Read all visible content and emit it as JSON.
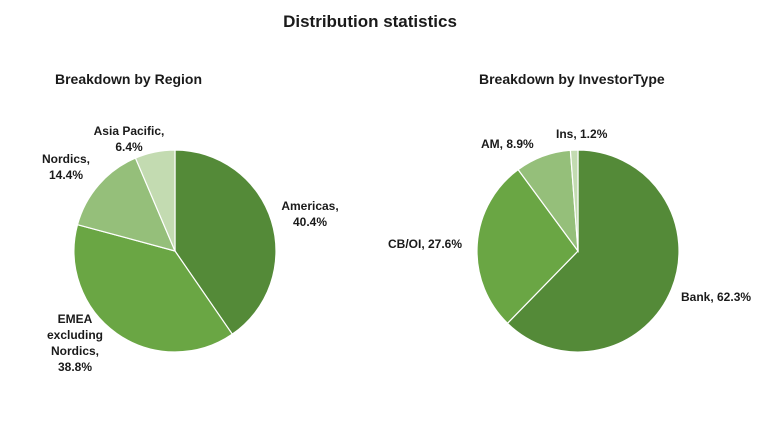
{
  "title": "Distribution statistics",
  "chart_data": [
    {
      "type": "pie",
      "title": "Breakdown by Region",
      "slices": [
        {
          "label": "Americas,",
          "value": 40.4,
          "value_text": "40.4%",
          "color": "#548a38"
        },
        {
          "label": "EMEA excluding Nordics,",
          "value": 38.8,
          "value_text": "38.8%",
          "color": "#6aa644"
        },
        {
          "label": "Nordics,",
          "value": 14.4,
          "value_text": "14.4%",
          "color": "#95bf7a"
        },
        {
          "label": "Asia Pacific,",
          "value": 6.4,
          "value_text": "6.4%",
          "color": "#c3dbb1"
        }
      ]
    },
    {
      "type": "pie",
      "title": "Breakdown by InvestorType",
      "slices": [
        {
          "label": "Bank,",
          "value": 62.3,
          "value_text": "62.3%",
          "color": "#548a38"
        },
        {
          "label": "CB/OI,",
          "value": 27.6,
          "value_text": "27.6%",
          "color": "#6aa644"
        },
        {
          "label": "AM,",
          "value": 8.9,
          "value_text": "8.9%",
          "color": "#95bf7a"
        },
        {
          "label": "Ins,",
          "value": 1.2,
          "value_text": "1.2%",
          "color": "#c3dbb1"
        }
      ]
    }
  ]
}
